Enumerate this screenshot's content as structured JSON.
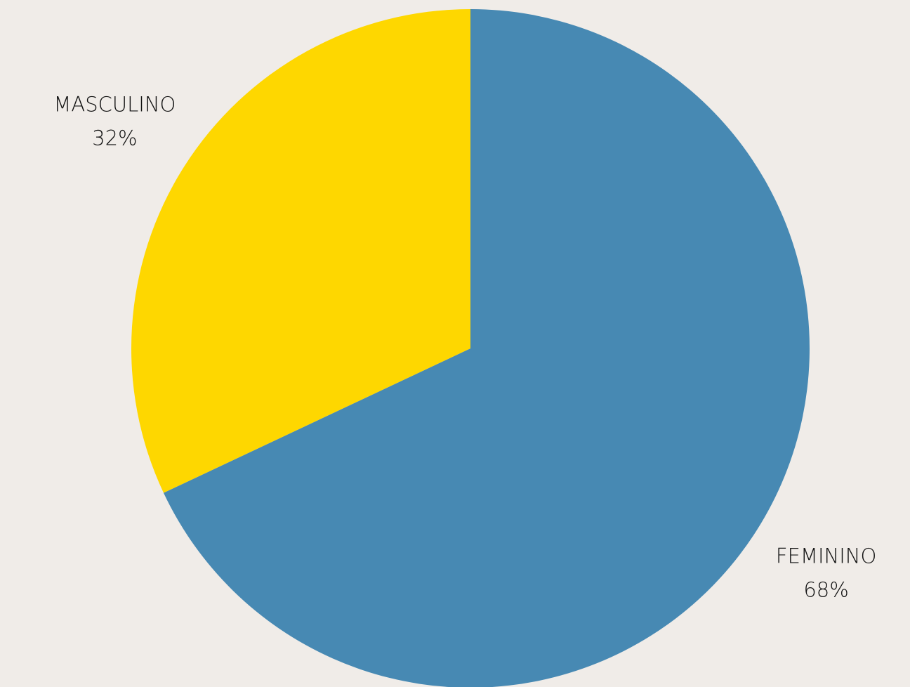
{
  "chart_data": {
    "type": "pie",
    "categories": [
      "FEMININO",
      "MASCULINO"
    ],
    "values": [
      68,
      32
    ],
    "value_labels": [
      "68%",
      "32%"
    ],
    "colors": [
      "#4789b3",
      "#fed700"
    ]
  }
}
